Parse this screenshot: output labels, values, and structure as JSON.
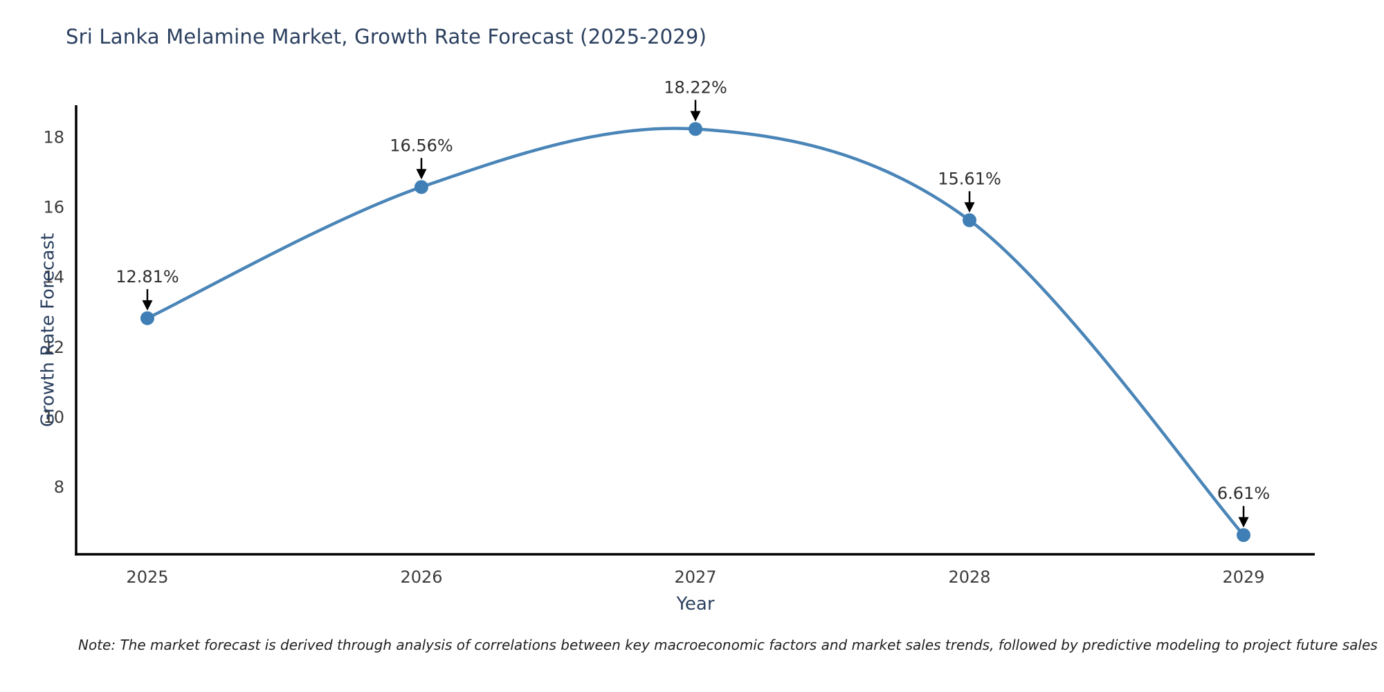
{
  "chart": {
    "title": "Sri Lanka Melamine Market, Growth Rate Forecast (2025-2029)",
    "xlabel": "Year",
    "ylabel": "Growth Rate Forecast",
    "note": "Note: The market forecast is derived through analysis of correlations between key macroeconomic factors and market sales trends, followed by predictive modeling to project future sales",
    "colors": {
      "title": "#2a3f5f",
      "axis_title": "#2a3f5f",
      "tick": "#3b3b3b",
      "point_label": "#2d2d2d",
      "note": "#1f1f1f",
      "line": "#4a85b8",
      "marker": "#3f7fb5",
      "arrow": "#000000",
      "axis_line": "#000000",
      "background": "#ffffff"
    }
  },
  "chart_data": {
    "type": "line",
    "title": "Sri Lanka Melamine Market, Growth Rate Forecast (2025-2029)",
    "xlabel": "Year",
    "ylabel": "Growth Rate Forecast",
    "x": [
      2025,
      2026,
      2027,
      2028,
      2029
    ],
    "series": [
      {
        "name": "Growth Rate Forecast",
        "values": [
          12.81,
          16.56,
          18.22,
          15.61,
          6.61
        ]
      }
    ],
    "point_labels": [
      "12.81%",
      "16.56%",
      "18.22%",
      "15.61%",
      "6.61%"
    ],
    "yticks": [
      8,
      10,
      12,
      14,
      16,
      18
    ],
    "xticks": [
      2025,
      2026,
      2027,
      2028,
      2029
    ],
    "ylim": [
      6.06,
      18.9
    ],
    "xlim": [
      2024.74,
      2029.26
    ],
    "grid": false,
    "legend": "none",
    "line_shape": "spline",
    "annotations": "arrow-down-to-point"
  }
}
